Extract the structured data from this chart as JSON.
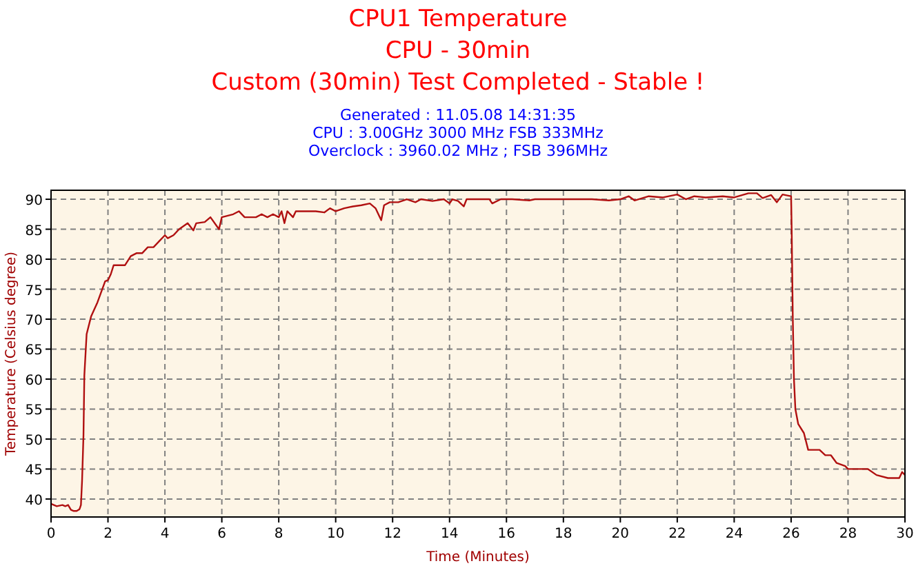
{
  "chart_data": {
    "type": "line",
    "title": "CPU1 Temperature",
    "subtitle": "CPU - 30min",
    "annotations": [
      "Custom (30min) Test Completed - Stable !",
      "Generated : 11.05.08 14:31:35",
      "CPU : 3.00GHz 3000 MHz FSB 333MHz",
      "Overclock : 3960.02 MHz ; FSB 396MHz"
    ],
    "xlabel": "Time (Minutes)",
    "ylabel": "Temperature (Celsius degree)",
    "x": [
      0,
      0.2,
      0.4,
      0.5,
      0.6,
      0.7,
      0.8,
      0.9,
      1.0,
      1.05,
      1.09,
      1.14,
      1.17,
      1.25,
      1.41,
      1.63,
      1.9,
      2.0,
      2.1,
      2.2,
      2.4,
      2.6,
      2.8,
      3.0,
      3.2,
      3.4,
      3.6,
      3.8,
      4.0,
      4.1,
      4.3,
      4.5,
      4.8,
      5.0,
      5.1,
      5.4,
      5.6,
      5.9,
      6.0,
      6.4,
      6.6,
      6.8,
      7.2,
      7.4,
      7.6,
      7.8,
      8.0,
      8.1,
      8.2,
      8.3,
      8.5,
      8.6,
      9.0,
      9.3,
      9.6,
      9.8,
      10.0,
      10.3,
      10.6,
      10.9,
      11.2,
      11.4,
      11.6,
      11.7,
      11.9,
      12.2,
      12.5,
      12.8,
      13.0,
      13.4,
      13.8,
      14.0,
      14.1,
      14.3,
      14.5,
      14.6,
      15.4,
      15.5,
      15.8,
      16.2,
      16.8,
      17.0,
      18,
      19,
      19.6,
      20,
      20.3,
      20.5,
      21,
      21.5,
      22,
      22.3,
      22.6,
      23,
      23.6,
      24,
      24.5,
      24.8,
      25.0,
      25.3,
      25.5,
      25.7,
      25.9,
      26.0,
      26.02,
      26.06,
      26.1,
      26.15,
      26.25,
      26.45,
      26.6,
      27,
      27.2,
      27.4,
      27.6,
      27.9,
      28,
      28.7,
      29,
      29.4,
      29.8,
      29.9,
      30
    ],
    "series": [
      {
        "color": "#b01010",
        "values": [
          39.2,
          38.8,
          39,
          38.8,
          39,
          38.2,
          38,
          38,
          38.3,
          39,
          43,
          50.7,
          60.6,
          67.5,
          70.5,
          72.8,
          76.3,
          76.5,
          77.5,
          79,
          79,
          79,
          80.5,
          81,
          81,
          82,
          82,
          83,
          84,
          83.5,
          84,
          85,
          86,
          84.8,
          86,
          86.2,
          87,
          85,
          87,
          87.5,
          88,
          87,
          87,
          87.5,
          87,
          87.5,
          87,
          88,
          86,
          88,
          87,
          88,
          88,
          88,
          87.8,
          88.5,
          88,
          88.5,
          88.8,
          89,
          89.3,
          88.5,
          86.5,
          89,
          89.5,
          89.5,
          90,
          89.5,
          90,
          89.7,
          90,
          89.3,
          90,
          89.7,
          88.8,
          90,
          90,
          89.3,
          90,
          90,
          89.8,
          90,
          90,
          90,
          89.8,
          90,
          90.5,
          89.8,
          90.5,
          90.3,
          90.8,
          90,
          90.5,
          90.3,
          90.5,
          90.3,
          91,
          91,
          90.2,
          90.7,
          89.5,
          90.8,
          90.6,
          90.5,
          85,
          70,
          60,
          55,
          52.5,
          51,
          48.2,
          48.2,
          47.3,
          47.3,
          46,
          45.5,
          45,
          45,
          44,
          43.5,
          43.5,
          44.5,
          44
        ]
      }
    ],
    "xlim": [
      0,
      30
    ],
    "ylim": [
      37,
      91.5
    ],
    "xticks": [
      0,
      2,
      4,
      6,
      8,
      10,
      12,
      14,
      16,
      18,
      20,
      22,
      24,
      26,
      28,
      30
    ],
    "yticks": [
      40,
      45,
      50,
      55,
      60,
      65,
      70,
      75,
      80,
      85,
      90
    ],
    "grid": true,
    "line_style": "solid",
    "marker": "none"
  }
}
